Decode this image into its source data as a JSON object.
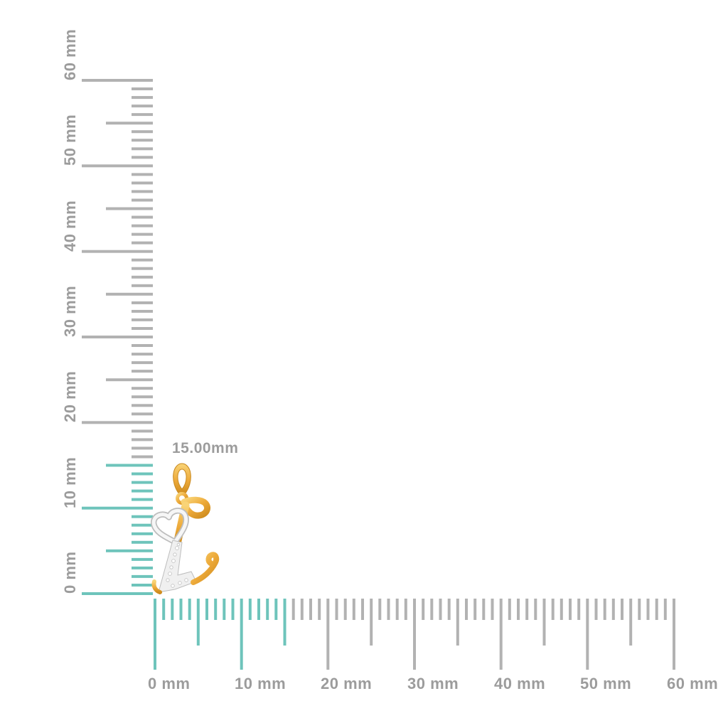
{
  "background": "#ffffff",
  "annotation": {
    "dimension_label": "15.00mm"
  },
  "rulers": {
    "unit": "mm",
    "min": 0,
    "max": 60,
    "minor_step": 1,
    "mid_step": 5,
    "major_step": 10,
    "highlight_until": 15,
    "colors": {
      "tick": "#b2b2b2",
      "highlight": "#6ec4bb",
      "label": "#9c9c9c"
    },
    "vertical": {
      "labels": [
        "0 mm",
        "10 mm",
        "20 mm",
        "30 mm",
        "40 mm",
        "50 mm",
        "60 mm"
      ]
    },
    "horizontal": {
      "labels": [
        "0 mm",
        "10 mm",
        "20 mm",
        "30 mm",
        "40 mm",
        "50 mm",
        "60 mm"
      ]
    }
  },
  "pendant": {
    "name": "gold-letter-l-heart-diamond-pendant",
    "colors": {
      "gold_light": "#f9d477",
      "gold": "#edaa3a",
      "gold_dark": "#cf8c1e",
      "gold_edge": "#c9891f",
      "white_gold": "#f0f0f0",
      "white_gold_edge": "#bdbdbd",
      "white_gold_highlight": "#f6f6f6",
      "diamond": "#ffffff",
      "diamond_edge": "#c0c0c0"
    }
  }
}
